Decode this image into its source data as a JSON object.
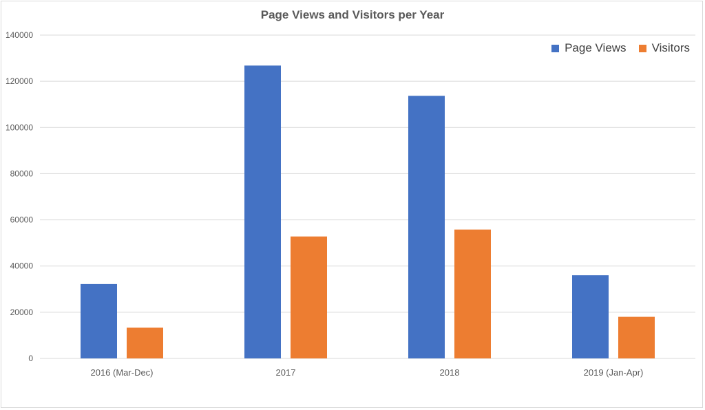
{
  "chart_data": {
    "type": "bar",
    "title": "Page Views and Visitors per Year",
    "xlabel": "",
    "ylabel": "",
    "categories": [
      "2016 (Mar-Dec)",
      "2017",
      "2018",
      "2019 (Jan-Apr)"
    ],
    "series": [
      {
        "name": "Page Views",
        "values": [
          32200,
          126800,
          113700,
          36000
        ],
        "color": "#4472c4"
      },
      {
        "name": "Visitors",
        "values": [
          13300,
          52800,
          55800,
          18000
        ],
        "color": "#ed7d31"
      }
    ],
    "ylim": [
      0,
      140000
    ],
    "yticks": [
      "0",
      "20000",
      "40000",
      "60000",
      "80000",
      "100000",
      "120000",
      "140000"
    ],
    "grid": true,
    "legend_position": "top-right"
  }
}
